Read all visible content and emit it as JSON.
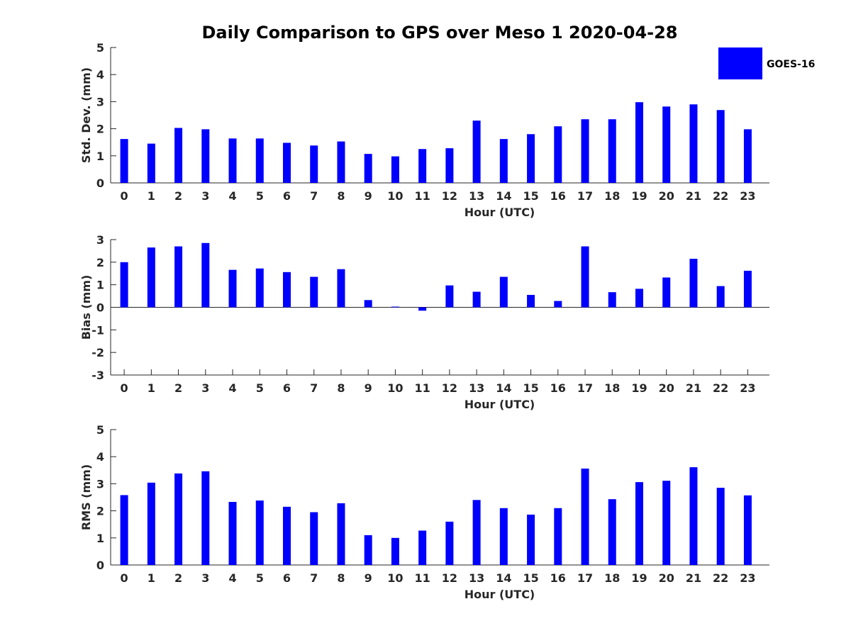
{
  "title": "Daily Comparison to GPS over Meso 1 2020-04-28",
  "legend": {
    "label": "GOES-16",
    "color": "#0000ff",
    "placement": "top-right"
  },
  "chart_data": [
    {
      "type": "bar",
      "xlabel": "Hour (UTC)",
      "ylabel": "Std. Dev. (mm)",
      "ylim": [
        0,
        5
      ],
      "yticks": [
        0,
        1,
        2,
        3,
        4,
        5
      ],
      "categories": [
        "0",
        "1",
        "2",
        "3",
        "4",
        "5",
        "6",
        "7",
        "8",
        "9",
        "10",
        "11",
        "12",
        "13",
        "14",
        "15",
        "16",
        "17",
        "18",
        "19",
        "20",
        "21",
        "22",
        "23"
      ],
      "series": [
        {
          "name": "GOES-16",
          "color": "#0000ff",
          "values": [
            1.62,
            1.45,
            2.03,
            1.98,
            1.64,
            1.64,
            1.48,
            1.38,
            1.53,
            1.07,
            0.98,
            1.25,
            1.28,
            2.3,
            1.62,
            1.8,
            2.09,
            2.35,
            2.35,
            2.98,
            2.82,
            2.9,
            2.69,
            1.98
          ]
        }
      ]
    },
    {
      "type": "bar",
      "xlabel": "Hour (UTC)",
      "ylabel": "Bias (mm)",
      "ylim": [
        -3,
        3
      ],
      "yticks": [
        -3,
        -2,
        -1,
        0,
        1,
        2,
        3
      ],
      "categories": [
        "0",
        "1",
        "2",
        "3",
        "4",
        "5",
        "6",
        "7",
        "8",
        "9",
        "10",
        "11",
        "12",
        "13",
        "14",
        "15",
        "16",
        "17",
        "18",
        "19",
        "20",
        "21",
        "22",
        "23"
      ],
      "series": [
        {
          "name": "GOES-16",
          "color": "#0000ff",
          "values": [
            2.0,
            2.65,
            2.7,
            2.85,
            1.66,
            1.72,
            1.56,
            1.35,
            1.69,
            0.32,
            0.03,
            -0.15,
            0.97,
            0.69,
            1.35,
            0.55,
            0.28,
            2.7,
            0.67,
            0.82,
            1.32,
            2.15,
            0.94,
            1.62
          ]
        }
      ]
    },
    {
      "type": "bar",
      "xlabel": "Hour (UTC)",
      "ylabel": "RMS (mm)",
      "ylim": [
        0,
        5
      ],
      "yticks": [
        0,
        1,
        2,
        3,
        4,
        5
      ],
      "categories": [
        "0",
        "1",
        "2",
        "3",
        "4",
        "5",
        "6",
        "7",
        "8",
        "9",
        "10",
        "11",
        "12",
        "13",
        "14",
        "15",
        "16",
        "17",
        "18",
        "19",
        "20",
        "21",
        "22",
        "23"
      ],
      "series": [
        {
          "name": "GOES-16",
          "color": "#0000ff",
          "values": [
            2.58,
            3.04,
            3.38,
            3.46,
            2.33,
            2.38,
            2.15,
            1.95,
            2.28,
            1.1,
            1.0,
            1.27,
            1.6,
            2.4,
            2.1,
            1.86,
            2.1,
            3.56,
            2.43,
            3.06,
            3.11,
            3.61,
            2.85,
            2.57
          ]
        }
      ]
    }
  ]
}
